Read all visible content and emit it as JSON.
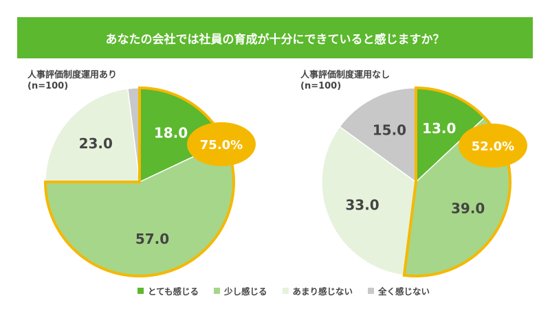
{
  "title": "あなたの会社では社員の育成が十分にできていると感じますか？",
  "chart_data": [
    {
      "type": "pie",
      "title": "人事評価制度運用あり",
      "subtitle": "(n=100)",
      "categories": [
        "とても感じる",
        "少し感じる",
        "あまり感じない",
        "全く感じない"
      ],
      "values": [
        18.0,
        57.0,
        23.0,
        2.0
      ],
      "labels": [
        "18.0",
        "57.0",
        "23.0",
        ""
      ],
      "highlight_total": "75.0%"
    },
    {
      "type": "pie",
      "title": "人事評価制度運用なし",
      "subtitle": "(n=100)",
      "categories": [
        "とても感じる",
        "少し感じる",
        "あまり感じない",
        "全く感じない"
      ],
      "values": [
        13.0,
        39.0,
        33.0,
        15.0
      ],
      "labels": [
        "13.0",
        "39.0",
        "33.0",
        "15.0"
      ],
      "highlight_total": "52.0%"
    }
  ],
  "legend": [
    "とても感じる",
    "少し感じる",
    "あまり感じない",
    "全く感じない"
  ],
  "colors": [
    "#5cb82e",
    "#a6d68a",
    "#e6f2dc",
    "#c8c8c8"
  ],
  "highlight_color": "#f5b800"
}
